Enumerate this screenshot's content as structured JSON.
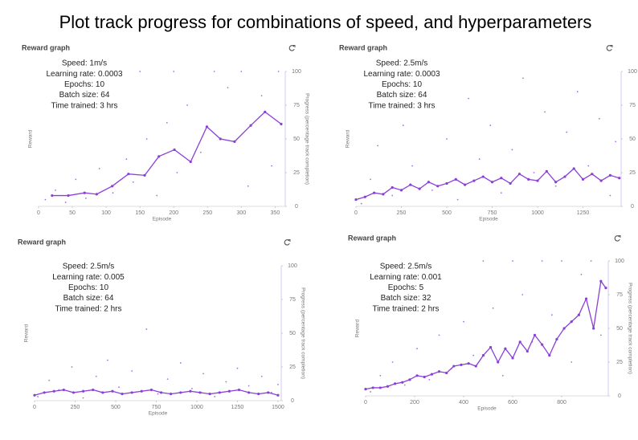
{
  "page_title": "Plot track progress for combinations of speed, and hyperparameters",
  "chart_data": [
    {
      "type": "line",
      "title": "Reward graph",
      "annotations": [
        "Speed: 1m/s",
        "Learning rate: 0.0003",
        "Epochs: 10",
        "Batch size: 64",
        "Time trained: 3 hrs"
      ],
      "x_label": "Episode",
      "y_label": "Reward",
      "y2_label": "Progress (percentage track completion)",
      "xlim": [
        0,
        365
      ],
      "xticks": [
        0,
        50,
        100,
        150,
        200,
        250,
        300,
        350
      ],
      "y2lim": [
        0,
        100
      ],
      "y2ticks": [
        0,
        25,
        50,
        75,
        100
      ],
      "series": [
        {
          "color": "#8b3fd9",
          "axis": "y2",
          "x": [
            20,
            44,
            68,
            86,
            109,
            133,
            157,
            178,
            201,
            225,
            249,
            269,
            290,
            314,
            335,
            359
          ],
          "values": [
            8,
            8,
            10,
            9,
            15,
            24,
            23,
            37,
            42,
            33,
            59,
            50,
            48,
            60,
            70,
            61
          ]
        }
      ],
      "points": {
        "color": "#a86ee8",
        "axis": "y2",
        "x": [
          10,
          25,
          40,
          55,
          70,
          90,
          110,
          130,
          140,
          160,
          175,
          190,
          205,
          220,
          240,
          260,
          280,
          300,
          310,
          330,
          345,
          355,
          200,
          150
        ],
        "values": [
          5,
          12,
          3,
          20,
          6,
          28,
          10,
          35,
          18,
          50,
          8,
          62,
          25,
          75,
          40,
          100,
          88,
          100,
          15,
          82,
          30,
          100,
          100,
          100
        ]
      }
    },
    {
      "type": "line",
      "title": "Reward graph",
      "annotations": [
        "Speed: 2.5m/s",
        "Learning rate: 0.0003",
        "Epochs: 10",
        "Batch size: 64",
        "Time trained: 3 hrs"
      ],
      "x_label": "Episode",
      "y_label": "Reward",
      "y2_label": "Progress (percentage track completion)",
      "xlim": [
        0,
        1460
      ],
      "xticks": [
        0,
        250,
        500,
        750,
        1000,
        1250
      ],
      "y2lim": [
        0,
        100
      ],
      "y2ticks": [
        0,
        25,
        50,
        75,
        100
      ],
      "series": [
        {
          "color": "#8b3fd9",
          "axis": "y2",
          "x": [
            0,
            50,
            100,
            150,
            200,
            250,
            300,
            350,
            400,
            450,
            500,
            550,
            600,
            650,
            700,
            750,
            800,
            850,
            900,
            950,
            1000,
            1050,
            1100,
            1150,
            1200,
            1250,
            1300,
            1350,
            1400,
            1450
          ],
          "values": [
            5,
            7,
            10,
            9,
            14,
            12,
            16,
            13,
            18,
            15,
            17,
            20,
            16,
            19,
            22,
            18,
            21,
            17,
            24,
            20,
            19,
            26,
            18,
            22,
            28,
            20,
            24,
            19,
            23,
            21
          ]
        }
      ],
      "points": {
        "color": "#a86ee8",
        "axis": "y2",
        "x": [
          30,
          80,
          120,
          200,
          260,
          310,
          380,
          420,
          500,
          560,
          620,
          680,
          740,
          800,
          860,
          920,
          980,
          1040,
          1100,
          1160,
          1220,
          1280,
          1340,
          1400,
          1430
        ],
        "values": [
          2,
          20,
          45,
          8,
          60,
          30,
          75,
          12,
          50,
          5,
          80,
          35,
          60,
          10,
          42,
          95,
          25,
          70,
          15,
          55,
          85,
          30,
          65,
          8,
          48
        ]
      }
    },
    {
      "type": "line",
      "title": "Reward graph",
      "annotations": [
        "Speed: 2.5m/s",
        "Learning rate: 0.005",
        "Epochs: 10",
        "Batch size: 64",
        "Time trained: 2 hrs"
      ],
      "x_label": "Episode",
      "y_label": "Reward",
      "y2_label": "Progress (percentage track completion)",
      "xlim": [
        0,
        1520
      ],
      "xticks": [
        0,
        250,
        500,
        750,
        1000,
        1250,
        1500
      ],
      "y2lim": [
        0,
        100
      ],
      "y2ticks": [
        0,
        25,
        50,
        75,
        100
      ],
      "series": [
        {
          "color": "#8b3fd9",
          "axis": "y2",
          "x": [
            0,
            60,
            120,
            180,
            240,
            300,
            360,
            420,
            480,
            540,
            600,
            660,
            720,
            780,
            840,
            900,
            960,
            1020,
            1080,
            1140,
            1200,
            1260,
            1320,
            1380,
            1440,
            1500
          ],
          "values": [
            4,
            6,
            7,
            8,
            6,
            7,
            8,
            6,
            7,
            5,
            6,
            7,
            8,
            6,
            5,
            6,
            7,
            6,
            5,
            6,
            7,
            8,
            6,
            5,
            6,
            4
          ]
        }
      ],
      "points": {
        "color": "#a86ee8",
        "axis": "y2",
        "x": [
          20,
          90,
          150,
          230,
          300,
          380,
          450,
          520,
          600,
          690,
          760,
          820,
          900,
          970,
          1040,
          1110,
          1180,
          1250,
          1320,
          1400,
          1460,
          1500
        ],
        "values": [
          3,
          15,
          8,
          25,
          2,
          18,
          30,
          10,
          22,
          53,
          5,
          16,
          28,
          9,
          20,
          3,
          14,
          24,
          11,
          18,
          6,
          12
        ]
      }
    },
    {
      "type": "line",
      "title": "Reward graph",
      "annotations": [
        "Speed: 2.5m/s",
        "Learning rate: 0.001",
        "Epochs: 5",
        "Batch size: 32",
        "Time trained: 2 hrs"
      ],
      "x_label": "Episode",
      "y_label": "Reward",
      "y2_label": "Progress (percentage track completion)",
      "xlim": [
        0,
        990
      ],
      "xticks": [
        0,
        200,
        400,
        600,
        800
      ],
      "y2lim": [
        0,
        100
      ],
      "y2ticks": [
        0,
        25,
        50,
        75,
        100
      ],
      "series": [
        {
          "color": "#8b3fd9",
          "axis": "y2",
          "x": [
            0,
            30,
            60,
            90,
            120,
            150,
            180,
            210,
            240,
            270,
            300,
            330,
            360,
            390,
            420,
            450,
            480,
            510,
            540,
            570,
            600,
            630,
            660,
            690,
            720,
            750,
            780,
            810,
            840,
            870,
            900,
            930,
            960,
            980
          ],
          "values": [
            5,
            6,
            6,
            7,
            9,
            10,
            12,
            15,
            14,
            16,
            18,
            17,
            22,
            23,
            24,
            22,
            30,
            36,
            25,
            35,
            28,
            40,
            33,
            45,
            38,
            30,
            42,
            50,
            55,
            60,
            72,
            50,
            85,
            80
          ]
        }
      ],
      "points": {
        "color": "#a86ee8",
        "axis": "y2",
        "x": [
          20,
          60,
          110,
          160,
          210,
          260,
          300,
          350,
          400,
          440,
          480,
          520,
          560,
          600,
          640,
          680,
          720,
          760,
          800,
          840,
          880,
          920,
          960
        ],
        "values": [
          3,
          15,
          25,
          8,
          35,
          12,
          45,
          20,
          55,
          30,
          100,
          65,
          15,
          100,
          75,
          40,
          100,
          60,
          100,
          25,
          90,
          100,
          45
        ]
      }
    }
  ]
}
